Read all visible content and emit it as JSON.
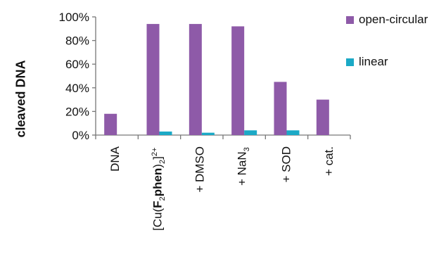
{
  "chart_data": {
    "type": "bar",
    "ylabel": "cleaved DNA",
    "ylim": [
      0,
      100
    ],
    "yticks": [
      "0%",
      "20%",
      "40%",
      "60%",
      "80%",
      "100%"
    ],
    "categories": [
      "DNA",
      "[Cu(F2phen)2]2+",
      "+ DMSO",
      "+ NaN3",
      "+ SOD",
      "+ cat."
    ],
    "series": [
      {
        "name": "open-circular",
        "color": "#8e5aa8",
        "values": [
          18,
          94,
          94,
          92,
          45,
          30
        ]
      },
      {
        "name": "linear",
        "color": "#1ba9c6",
        "values": [
          0,
          3,
          2,
          4,
          4,
          0
        ]
      }
    ],
    "legend": "right",
    "grid": false
  }
}
